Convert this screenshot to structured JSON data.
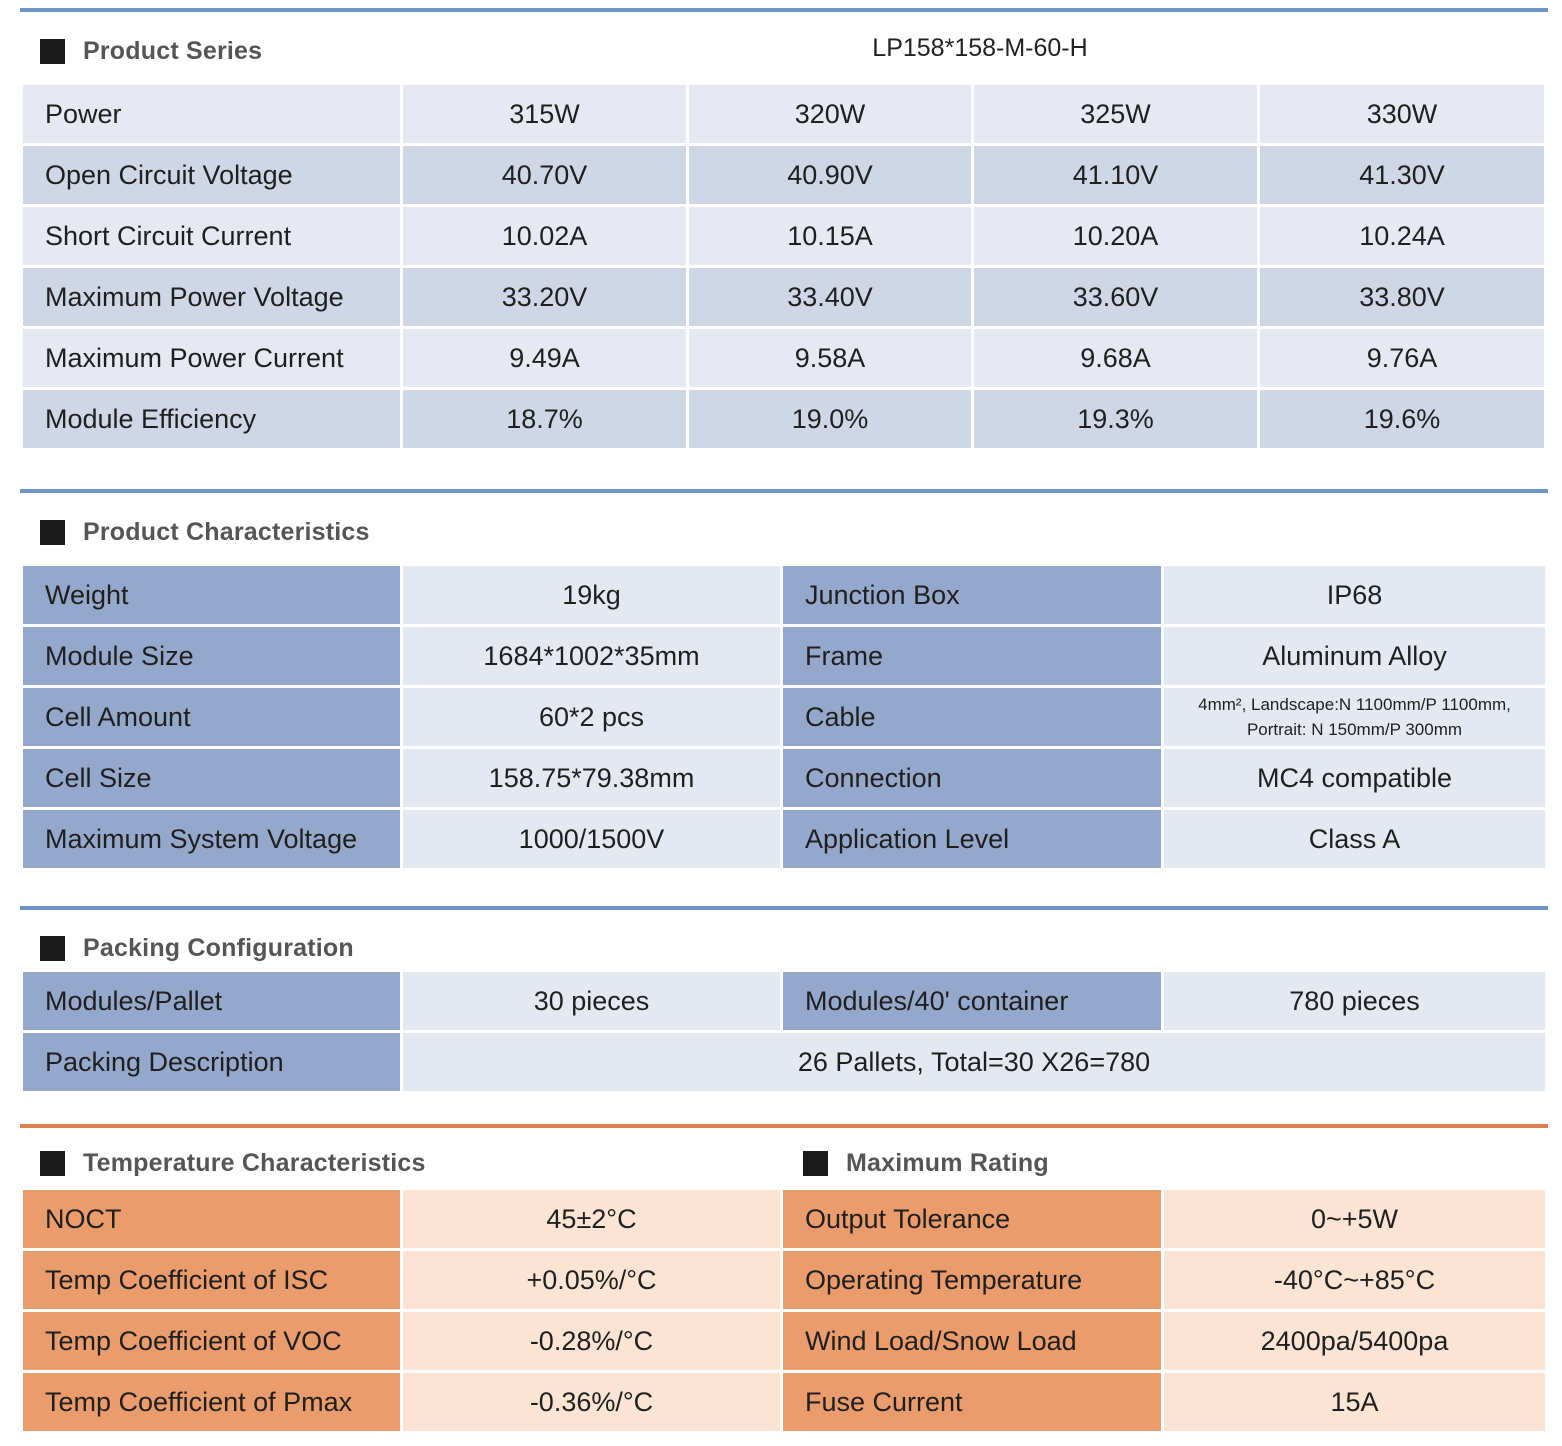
{
  "series": {
    "title": "Product Series",
    "model": "LP158*158-M-60-H",
    "rows": [
      {
        "label": "Power",
        "values": [
          "315W",
          "320W",
          "325W",
          "330W"
        ]
      },
      {
        "label": "Open Circuit Voltage",
        "values": [
          "40.70V",
          "40.90V",
          "41.10V",
          "41.30V"
        ]
      },
      {
        "label": "Short Circuit Current",
        "values": [
          "10.02A",
          "10.15A",
          "10.20A",
          "10.24A"
        ]
      },
      {
        "label": "Maximum Power Voltage",
        "values": [
          "33.20V",
          "33.40V",
          "33.60V",
          "33.80V"
        ]
      },
      {
        "label": "Maximum Power Current",
        "values": [
          "9.49A",
          "9.58A",
          "9.68A",
          "9.76A"
        ]
      },
      {
        "label": "Module Efficiency",
        "values": [
          "18.7%",
          "19.0%",
          "19.3%",
          "19.6%"
        ]
      }
    ]
  },
  "characteristics": {
    "title": "Product Characteristics",
    "rows": [
      {
        "l1": "Weight",
        "v1": "19kg",
        "l2": "Junction Box",
        "v2": "IP68"
      },
      {
        "l1": "Module Size",
        "v1": "1684*1002*35mm",
        "l2": "Frame",
        "v2": "Aluminum Alloy"
      },
      {
        "l1": "Cell Amount",
        "v1": "60*2 pcs",
        "l2": "Cable",
        "v2": "4mm², Landscape:N 1100mm/P 1100mm, Portrait: N 150mm/P 300mm"
      },
      {
        "l1": "Cell Size",
        "v1": "158.75*79.38mm",
        "l2": "Connection",
        "v2": "MC4 compatible"
      },
      {
        "l1": "Maximum System Voltage",
        "v1": "1000/1500V",
        "l2": "Application Level",
        "v2": "Class A"
      }
    ]
  },
  "packing": {
    "title": "Packing Configuration",
    "row1": {
      "l1": "Modules/Pallet",
      "v1": "30 pieces",
      "l2": "Modules/40' container",
      "v2": "780 pieces"
    },
    "row2": {
      "label": "Packing Description",
      "value": "26 Pallets, Total=30 X26=780"
    }
  },
  "temperature": {
    "title": "Temperature Characteristics",
    "title2": "Maximum Rating",
    "rows": [
      {
        "l1": "NOCT",
        "v1": "45±2°C",
        "l2": "Output Tolerance",
        "v2": "0~+5W"
      },
      {
        "l1": "Temp Coefficient of ISC",
        "v1": "+0.05%/°C",
        "l2": "Operating Temperature",
        "v2": "-40°C~+85°C"
      },
      {
        "l1": "Temp Coefficient of VOC",
        "v1": "-0.28%/°C",
        "l2": "Wind Load/Snow Load",
        "v2": "2400pa/5400pa"
      },
      {
        "l1": "Temp Coefficient of Pmax",
        "v1": "-0.36%/°C",
        "l2": "Fuse Current",
        "v2": "15A"
      }
    ]
  },
  "colors": {
    "rule_blue": "#6d95c4",
    "rule_orange": "#e2814f",
    "blue_label": "#94a8cc",
    "orange_label": "#eb9c6c"
  }
}
